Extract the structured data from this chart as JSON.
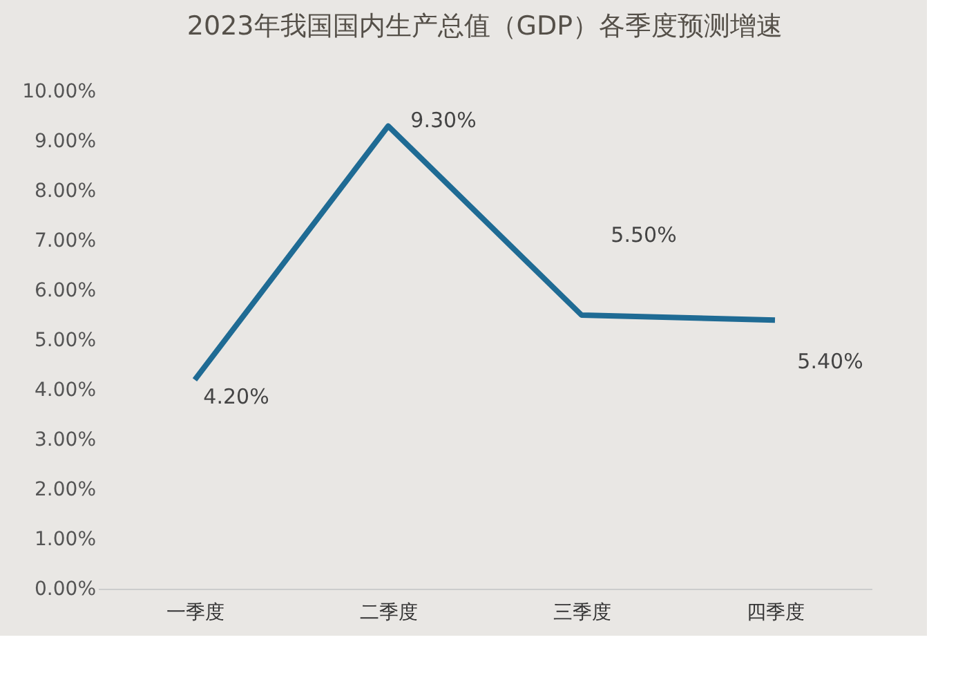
{
  "chart_data": {
    "type": "line",
    "title": "2023年我国国内生产总值（GDP）各季度预测增速",
    "categories": [
      "一季度",
      "二季度",
      "三季度",
      "四季度"
    ],
    "series": [
      {
        "color": "#1f6b94",
        "values": [
          4.2,
          9.3,
          5.5,
          5.4
        ]
      }
    ],
    "value_labels": [
      "4.20%",
      "9.30%",
      "5.50%",
      "5.40%"
    ],
    "ylim": [
      0,
      10
    ],
    "yticks": [
      {
        "value": 0,
        "label": "0.00%"
      },
      {
        "value": 1,
        "label": "1.00%"
      },
      {
        "value": 2,
        "label": "2.00%"
      },
      {
        "value": 3,
        "label": "3.00%"
      },
      {
        "value": 4,
        "label": "4.00%"
      },
      {
        "value": 5,
        "label": "5.00%"
      },
      {
        "value": 6,
        "label": "6.00%"
      },
      {
        "value": 7,
        "label": "7.00%"
      },
      {
        "value": 8,
        "label": "8.00%"
      },
      {
        "value": 9,
        "label": "9.00%"
      },
      {
        "value": 10,
        "label": "10.00%"
      }
    ],
    "grid": false,
    "marker": "none",
    "line_style": "solid"
  }
}
